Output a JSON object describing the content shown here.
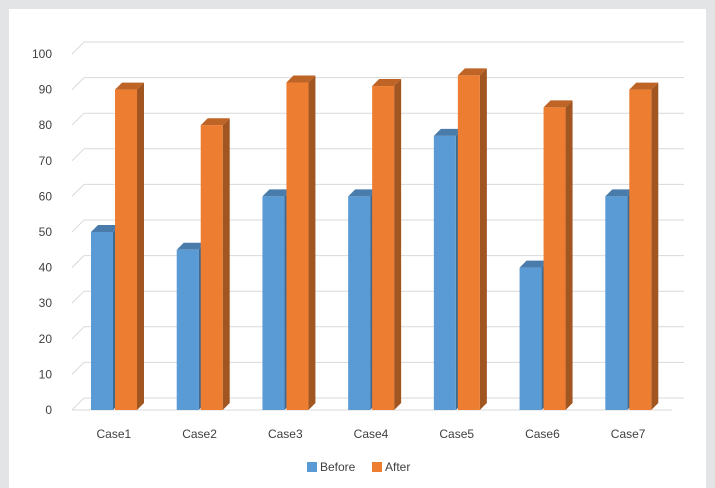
{
  "chart_data": {
    "type": "bar",
    "categories": [
      "Case1",
      "Case2",
      "Case3",
      "Case4",
      "Case5",
      "Case6",
      "Case7"
    ],
    "series": [
      {
        "name": "Before",
        "values": [
          50,
          45,
          60,
          60,
          77,
          40,
          60
        ],
        "color": "#5b9bd5"
      },
      {
        "name": "After",
        "values": [
          90,
          80,
          92,
          91,
          94,
          85,
          90
        ],
        "color": "#ed7d31"
      }
    ],
    "y_ticks": [
      "0",
      "10",
      "20",
      "30",
      "40",
      "50",
      "60",
      "70",
      "80",
      "90",
      "100"
    ],
    "ylim": [
      0,
      100
    ],
    "grid": true,
    "style": "3d-clustered-column",
    "legend_position": "bottom"
  }
}
